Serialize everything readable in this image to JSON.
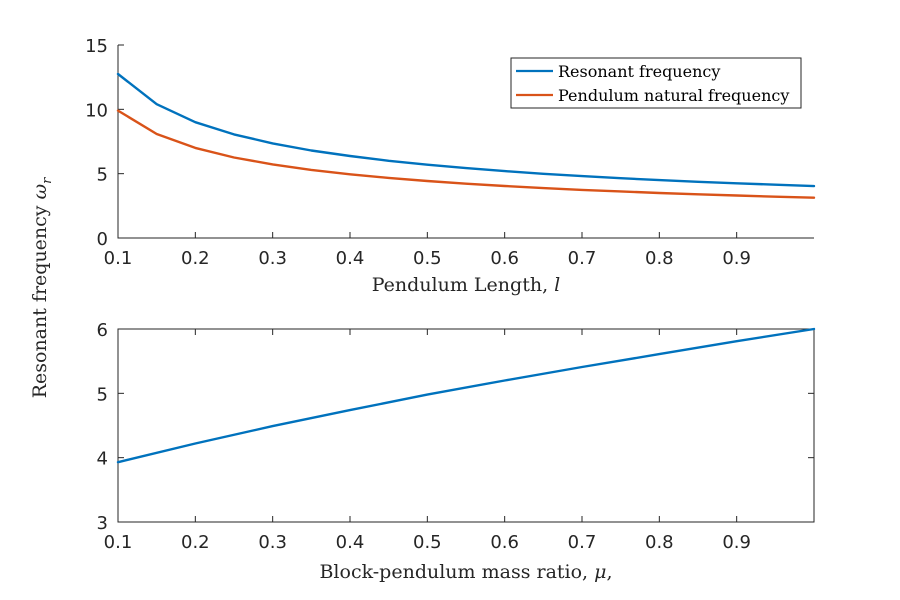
{
  "chart_data": [
    {
      "type": "line",
      "xlabel": "Pendulum Length, l",
      "ylabel": "Resonant frequency ωr",
      "xlim": [
        0.1,
        1.0
      ],
      "ylim": [
        0,
        15
      ],
      "xticks": [
        0.1,
        0.2,
        0.3,
        0.4,
        0.5,
        0.6,
        0.7,
        0.8,
        0.9
      ],
      "yticks": [
        0,
        5,
        10,
        15
      ],
      "grid": false,
      "legend": "top-right",
      "x": [
        0.1,
        0.15,
        0.2,
        0.25,
        0.3,
        0.35,
        0.4,
        0.45,
        0.5,
        0.55,
        0.6,
        0.65,
        0.7,
        0.75,
        0.8,
        0.85,
        0.9,
        0.95,
        1.0
      ],
      "series": [
        {
          "name": "Resonant frequency",
          "color": "#0072BD",
          "values": [
            12.75,
            10.4,
            9.0,
            8.05,
            7.35,
            6.8,
            6.37,
            6.0,
            5.7,
            5.43,
            5.2,
            4.99,
            4.81,
            4.65,
            4.5,
            4.37,
            4.25,
            4.14,
            4.03
          ]
        },
        {
          "name": "Pendulum natural frequency",
          "color": "#D95319",
          "values": [
            9.9,
            8.08,
            7.0,
            6.26,
            5.72,
            5.29,
            4.95,
            4.67,
            4.43,
            4.22,
            4.04,
            3.88,
            3.74,
            3.62,
            3.5,
            3.4,
            3.3,
            3.21,
            3.13
          ]
        }
      ]
    },
    {
      "type": "line",
      "xlabel": "Block-pendulum mass ratio, μ,",
      "ylabel": "",
      "xlim": [
        0.1,
        1.0
      ],
      "ylim": [
        3,
        6
      ],
      "xticks": [
        0.1,
        0.2,
        0.3,
        0.4,
        0.5,
        0.6,
        0.7,
        0.8,
        0.9
      ],
      "yticks": [
        3,
        4,
        5,
        6
      ],
      "grid": false,
      "x": [
        0.1,
        0.2,
        0.3,
        0.4,
        0.5,
        0.6,
        0.7,
        0.8,
        0.9,
        1.0
      ],
      "series": [
        {
          "color": "#0072BD",
          "values": [
            3.93,
            4.22,
            4.49,
            4.74,
            4.98,
            5.2,
            5.41,
            5.61,
            5.81,
            6.0
          ]
        }
      ]
    }
  ]
}
